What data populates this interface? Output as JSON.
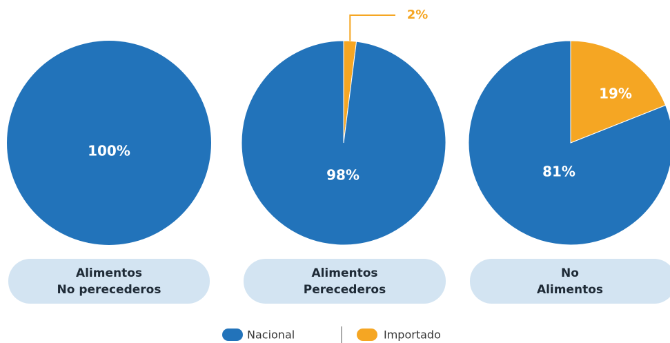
{
  "chart_data": [
    {
      "type": "pie",
      "title": [
        "Alimentos",
        "No perecederos"
      ],
      "categories": [
        "Nacional"
      ],
      "values": [
        100
      ],
      "value_labels": [
        "100%"
      ],
      "colors": [
        "#2273ba"
      ]
    },
    {
      "type": "pie",
      "title": [
        "Alimentos",
        "Perecederos"
      ],
      "categories": [
        "Nacional",
        "Importado"
      ],
      "values": [
        98,
        2
      ],
      "value_labels": [
        "98%",
        "2%"
      ],
      "colors": [
        "#2273ba",
        "#f5a623"
      ]
    },
    {
      "type": "pie",
      "title": [
        "No",
        "Alimentos"
      ],
      "categories": [
        "Nacional",
        "Importado"
      ],
      "values": [
        81,
        19
      ],
      "value_labels": [
        "81%",
        "19%"
      ],
      "colors": [
        "#2273ba",
        "#f5a623"
      ]
    }
  ]
}
